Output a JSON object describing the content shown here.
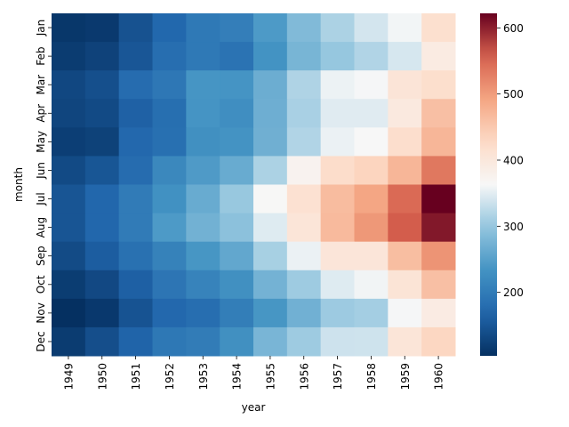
{
  "chart_data": {
    "type": "heatmap",
    "xlabel": "year",
    "ylabel": "month",
    "x_categories": [
      "1949",
      "1950",
      "1951",
      "1952",
      "1953",
      "1954",
      "1955",
      "1956",
      "1957",
      "1958",
      "1959",
      "1960"
    ],
    "y_categories": [
      "Jan",
      "Feb",
      "Mar",
      "Apr",
      "May",
      "Jun",
      "Jul",
      "Aug",
      "Sep",
      "Oct",
      "Nov",
      "Dec"
    ],
    "values": [
      [
        112,
        115,
        145,
        171,
        196,
        204,
        242,
        284,
        315,
        340,
        360,
        417
      ],
      [
        118,
        126,
        150,
        180,
        196,
        188,
        233,
        277,
        301,
        318,
        342,
        391
      ],
      [
        132,
        141,
        178,
        193,
        236,
        235,
        267,
        317,
        356,
        362,
        406,
        419
      ],
      [
        129,
        135,
        163,
        181,
        235,
        227,
        269,
        313,
        348,
        348,
        396,
        461
      ],
      [
        121,
        125,
        172,
        183,
        229,
        234,
        270,
        318,
        355,
        363,
        420,
        472
      ],
      [
        135,
        149,
        178,
        218,
        243,
        264,
        315,
        374,
        422,
        435,
        472,
        535
      ],
      [
        148,
        170,
        199,
        230,
        264,
        302,
        364,
        413,
        465,
        491,
        548,
        622
      ],
      [
        148,
        170,
        199,
        242,
        272,
        293,
        347,
        405,
        467,
        505,
        559,
        606
      ],
      [
        136,
        158,
        184,
        209,
        237,
        259,
        312,
        355,
        404,
        404,
        463,
        508
      ],
      [
        119,
        133,
        162,
        191,
        211,
        229,
        274,
        306,
        347,
        359,
        407,
        461
      ],
      [
        104,
        114,
        146,
        172,
        180,
        203,
        237,
        271,
        305,
        310,
        362,
        390
      ],
      [
        118,
        140,
        166,
        194,
        201,
        229,
        278,
        306,
        336,
        337,
        405,
        432
      ]
    ],
    "value_range": [
      104,
      622
    ],
    "colormap": "RdBu_r",
    "colorbar": {
      "ticks": [
        200,
        300,
        400,
        500,
        600
      ]
    }
  }
}
